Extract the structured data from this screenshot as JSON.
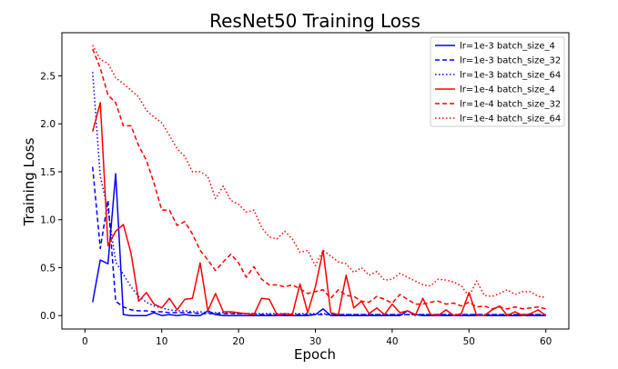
{
  "chart_data": {
    "type": "line",
    "title": "ResNet50 Training Loss",
    "xlabel": "Epoch",
    "ylabel": "Training Loss",
    "xlim": [
      -3.0,
      63.0
    ],
    "ylim": [
      -0.14,
      2.95
    ],
    "xticks": [
      0,
      10,
      20,
      30,
      40,
      50,
      60
    ],
    "yticks": [
      0.0,
      0.5,
      1.0,
      1.5,
      2.0,
      2.5
    ],
    "ytick_labels": [
      "0.0",
      "0.5",
      "1.0",
      "1.5",
      "2.0",
      "2.5"
    ],
    "grid": false,
    "legend_position": "top-right",
    "x": [
      1,
      2,
      3,
      4,
      5,
      6,
      7,
      8,
      9,
      10,
      11,
      12,
      13,
      14,
      15,
      16,
      17,
      18,
      19,
      20,
      21,
      22,
      23,
      24,
      25,
      26,
      27,
      28,
      29,
      30,
      31,
      32,
      33,
      34,
      35,
      36,
      37,
      38,
      39,
      40,
      41,
      42,
      43,
      44,
      45,
      46,
      47,
      48,
      49,
      50,
      51,
      52,
      53,
      54,
      55,
      56,
      57,
      58,
      59,
      60
    ],
    "series": [
      {
        "name": "lr=1e-3 batch_size_4",
        "color": "#0000ff",
        "linestyle": "solid",
        "values": [
          0.14,
          0.58,
          0.54,
          1.48,
          0.01,
          0.0,
          0.0,
          0.0,
          0.03,
          0.0,
          0.01,
          0.0,
          0.01,
          0.0,
          0.0,
          0.05,
          0.01,
          0.0,
          0.0,
          0.0,
          0.0,
          0.0,
          0.0,
          0.0,
          0.0,
          0.0,
          0.0,
          0.0,
          0.0,
          0.01,
          0.07,
          0.0,
          0.0,
          0.0,
          0.0,
          0.0,
          0.0,
          0.0,
          0.0,
          0.0,
          0.0,
          0.05,
          0.01,
          0.0,
          0.0,
          0.0,
          0.0,
          0.0,
          0.0,
          0.0,
          0.0,
          0.0,
          0.0,
          0.0,
          0.0,
          0.0,
          0.0,
          0.0,
          0.0,
          0.0
        ]
      },
      {
        "name": "lr=1e-3 batch_size_32",
        "color": "#0000ff",
        "linestyle": "dashed",
        "values": [
          1.55,
          0.7,
          1.2,
          0.15,
          0.09,
          0.06,
          0.05,
          0.05,
          0.04,
          0.04,
          0.03,
          0.03,
          0.03,
          0.03,
          0.02,
          0.02,
          0.02,
          0.02,
          0.02,
          0.02,
          0.02,
          0.02,
          0.01,
          0.01,
          0.01,
          0.01,
          0.01,
          0.01,
          0.01,
          0.01,
          0.01,
          0.01,
          0.01,
          0.01,
          0.01,
          0.01,
          0.01,
          0.01,
          0.01,
          0.01,
          0.01,
          0.01,
          0.01,
          0.01,
          0.01,
          0.01,
          0.01,
          0.01,
          0.01,
          0.01,
          0.01,
          0.01,
          0.01,
          0.01,
          0.01,
          0.01,
          0.01,
          0.01,
          0.01,
          0.01
        ]
      },
      {
        "name": "lr=1e-3 batch_size_64",
        "color": "#0000ff",
        "linestyle": "dotted",
        "values": [
          2.54,
          1.45,
          1.1,
          0.56,
          0.43,
          0.3,
          0.2,
          0.14,
          0.1,
          0.08,
          0.06,
          0.05,
          0.05,
          0.04,
          0.04,
          0.03,
          0.03,
          0.03,
          0.03,
          0.02,
          0.02,
          0.02,
          0.02,
          0.02,
          0.02,
          0.02,
          0.02,
          0.02,
          0.02,
          0.02,
          0.02,
          0.02,
          0.01,
          0.01,
          0.01,
          0.01,
          0.01,
          0.01,
          0.01,
          0.01,
          0.01,
          0.01,
          0.01,
          0.01,
          0.01,
          0.01,
          0.01,
          0.01,
          0.01,
          0.01,
          0.01,
          0.01,
          0.01,
          0.01,
          0.01,
          0.01,
          0.01,
          0.01,
          0.01,
          0.01
        ]
      },
      {
        "name": "lr=1e-4 batch_size_4",
        "color": "#ff0000",
        "linestyle": "solid",
        "values": [
          1.92,
          2.22,
          0.73,
          0.88,
          0.95,
          0.65,
          0.15,
          0.24,
          0.12,
          0.08,
          0.18,
          0.06,
          0.17,
          0.18,
          0.55,
          0.05,
          0.23,
          0.04,
          0.04,
          0.03,
          0.02,
          0.01,
          0.18,
          0.17,
          0.01,
          0.02,
          0.01,
          0.33,
          0.03,
          0.3,
          0.68,
          0.03,
          0.01,
          0.42,
          0.08,
          0.15,
          0.02,
          0.08,
          0.01,
          0.12,
          0.03,
          0.05,
          0.0,
          0.18,
          0.01,
          0.0,
          0.06,
          0.0,
          0.02,
          0.24,
          0.0,
          0.0,
          0.06,
          0.1,
          0.0,
          0.04,
          0.0,
          0.02,
          0.06,
          0.0
        ]
      },
      {
        "name": "lr=1e-4 batch_size_32",
        "color": "#ff0000",
        "linestyle": "dashed",
        "values": [
          2.78,
          2.58,
          2.3,
          2.22,
          1.98,
          1.98,
          1.77,
          1.62,
          1.38,
          1.1,
          1.1,
          0.94,
          0.98,
          0.85,
          0.68,
          0.58,
          0.47,
          0.56,
          0.64,
          0.55,
          0.4,
          0.51,
          0.38,
          0.32,
          0.32,
          0.3,
          0.32,
          0.28,
          0.23,
          0.25,
          0.27,
          0.18,
          0.27,
          0.21,
          0.2,
          0.15,
          0.14,
          0.2,
          0.17,
          0.13,
          0.22,
          0.17,
          0.12,
          0.12,
          0.14,
          0.15,
          0.12,
          0.13,
          0.1,
          0.14,
          0.09,
          0.1,
          0.07,
          0.09,
          0.07,
          0.09,
          0.07,
          0.08,
          0.09,
          0.07
        ]
      },
      {
        "name": "lr=1e-4 batch_size_64",
        "color": "#ff0000",
        "linestyle": "dotted",
        "values": [
          2.82,
          2.67,
          2.63,
          2.48,
          2.42,
          2.35,
          2.28,
          2.14,
          2.07,
          2.01,
          1.88,
          1.74,
          1.66,
          1.5,
          1.5,
          1.45,
          1.22,
          1.35,
          1.2,
          1.16,
          1.08,
          1.1,
          0.92,
          0.82,
          0.8,
          0.88,
          0.8,
          0.66,
          0.68,
          0.52,
          0.68,
          0.62,
          0.56,
          0.54,
          0.45,
          0.5,
          0.42,
          0.46,
          0.37,
          0.38,
          0.44,
          0.4,
          0.36,
          0.32,
          0.31,
          0.38,
          0.37,
          0.35,
          0.31,
          0.2,
          0.36,
          0.21,
          0.2,
          0.23,
          0.27,
          0.22,
          0.25,
          0.25,
          0.2,
          0.19
        ]
      }
    ]
  }
}
